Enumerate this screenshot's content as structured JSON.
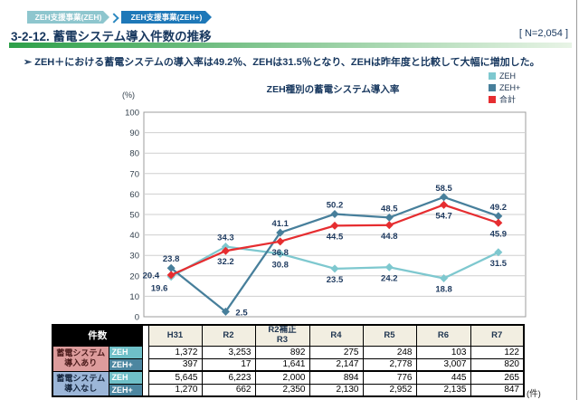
{
  "breadcrumbs": [
    {
      "label": "ZEH支援事業(ZEH)",
      "color": "#8ec6ce"
    },
    {
      "label": "ZEH支援事業(ZEH+)",
      "color": "#1e78b8"
    }
  ],
  "header": {
    "title": "3-2-12. 蓄電システム導入件数の推移",
    "n_badge": "[ N=2,054 ]"
  },
  "summary": {
    "marker": "➢",
    "text": "ZEH＋における蓄電システムの導入率は49.2％、ZEHは31.5％となり、ZEHは昨年度と比較して大幅に増加した。"
  },
  "chart_data": {
    "type": "line",
    "title": "ZEH種別の蓄電システム導入率",
    "y_axis_unit": "(%)",
    "ylim": [
      0,
      100
    ],
    "y_tick_step": 10,
    "grid": true,
    "legend_position": "top-right",
    "marker_shape": "diamond",
    "categories": [
      "H31",
      "R2",
      "R2補正R3",
      "R4",
      "R5",
      "R6",
      "R7"
    ],
    "series": [
      {
        "name": "ZEH",
        "color": "#7ec8cf",
        "values": [
          19.6,
          34.3,
          30.8,
          23.5,
          24.2,
          18.8,
          31.5
        ],
        "label_pos": [
          "below-left",
          "above",
          "below",
          "below",
          "below",
          "below",
          "below"
        ]
      },
      {
        "name": "ZEH+",
        "color": "#477f9b",
        "values": [
          23.8,
          2.5,
          41.1,
          50.2,
          48.5,
          58.5,
          49.2
        ],
        "label_pos": [
          "above",
          "right",
          "above",
          "above",
          "above",
          "above",
          "above"
        ]
      },
      {
        "name": "合計",
        "color": "#e62d30",
        "values": [
          20.4,
          32.2,
          36.8,
          44.5,
          44.8,
          54.7,
          45.9
        ],
        "label_pos": [
          "left",
          "below",
          "below",
          "below",
          "below",
          "below",
          "below"
        ]
      }
    ],
    "label_color": "#1e3a5f",
    "tick_color": "#33404d",
    "gridline_color": "#cfcfcf",
    "plot_border_color": "#9c9c9c"
  },
  "table": {
    "corner_label": "件数",
    "col_headers": [
      "H31",
      "R2",
      "R2補正\nR3",
      "R4",
      "R5",
      "R6",
      "R7"
    ],
    "row_groups": [
      {
        "label": "蓄電システム\n導入あり",
        "rows": [
          {
            "sub": "ZEH",
            "values": [
              "1,372",
              "3,253",
              "892",
              "275",
              "248",
              "103",
              "122"
            ]
          },
          {
            "sub": "ZEH+",
            "values": [
              "397",
              "17",
              "1,641",
              "2,147",
              "2,778",
              "3,007",
              "820"
            ]
          }
        ]
      },
      {
        "label": "蓄電システム\n導入なし",
        "rows": [
          {
            "sub": "ZEH",
            "values": [
              "5,645",
              "6,223",
              "2,000",
              "894",
              "776",
              "445",
              "265"
            ]
          },
          {
            "sub": "ZEH+",
            "values": [
              "1,270",
              "662",
              "2,350",
              "2,130",
              "2,952",
              "2,135",
              "847"
            ]
          }
        ]
      }
    ],
    "unit_note": "(件)"
  }
}
